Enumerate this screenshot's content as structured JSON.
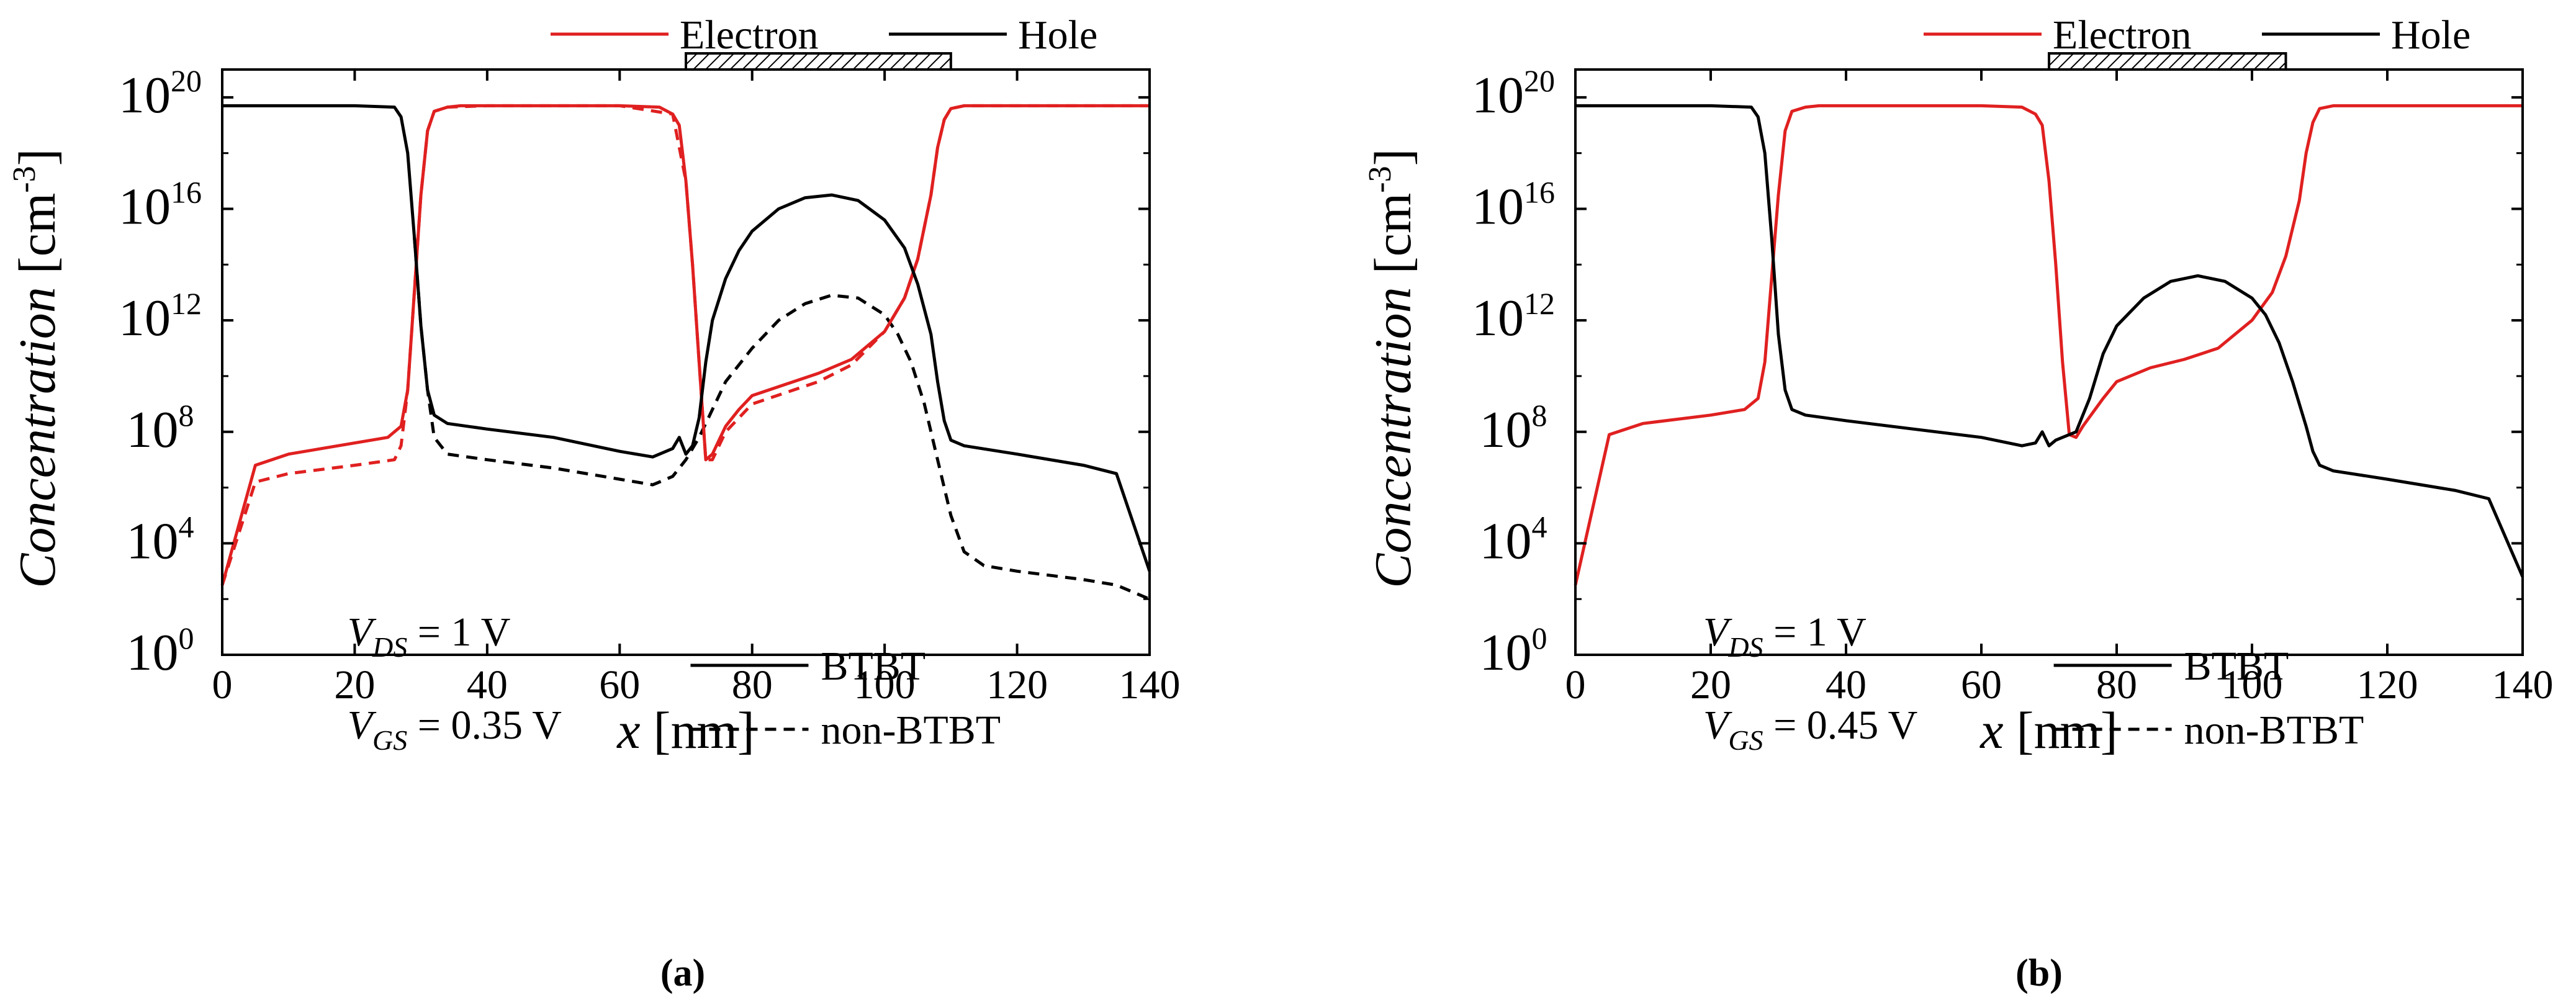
{
  "figure": {
    "panels_caption": [
      "(a)",
      "(b)"
    ]
  },
  "chart_data": [
    {
      "type": "line",
      "panel_label": "(a)",
      "title": "",
      "xlabel": "x [nm]",
      "ylabel": "Concentration [cm-3]",
      "ylabel_parts": {
        "italic": "Concentration",
        "unit_open": " [cm",
        "unit_sup": "-3",
        "unit_close": "]"
      },
      "xlabel_parts": {
        "italic": "x",
        "rest": " [nm]"
      },
      "x_scale": "linear",
      "y_scale": "log",
      "xlim": [
        0,
        140
      ],
      "ylim_log10": [
        0,
        21
      ],
      "x_ticks": [
        0,
        20,
        40,
        60,
        80,
        100,
        120,
        140
      ],
      "x_tick_labels": [
        "0",
        "20",
        "40",
        "60",
        "80",
        "100",
        "120",
        "140"
      ],
      "y_ticks_log10": [
        0,
        4,
        8,
        12,
        16,
        20
      ],
      "y_tick_labels": [
        {
          "base": "10",
          "exp": "0"
        },
        {
          "base": "10",
          "exp": "4"
        },
        {
          "base": "10",
          "exp": "8"
        },
        {
          "base": "10",
          "exp": "12"
        },
        {
          "base": "10",
          "exp": "16"
        },
        {
          "base": "10",
          "exp": "20"
        }
      ],
      "gate_region_nm": [
        70,
        110
      ],
      "legend_top": [
        {
          "label": "Electron",
          "color": "#e02020"
        },
        {
          "label": "Hole",
          "color": "#000000"
        }
      ],
      "legend_style": [
        {
          "label": "BTBT",
          "dash": "solid"
        },
        {
          "label": "non-BTBT",
          "dash": "dashed"
        }
      ],
      "annotations": [
        {
          "main": "V",
          "sub": "DS",
          "rest": " = 1 V"
        },
        {
          "main": "V",
          "sub": "GS",
          "rest": " = 0.35 V"
        }
      ],
      "series": [
        {
          "name": "Electron (BTBT)",
          "color": "#e02020",
          "dash": "solid",
          "x": [
            0,
            5,
            10,
            20,
            25,
            27,
            28,
            29,
            30,
            31,
            32,
            34,
            36,
            40,
            50,
            60,
            66,
            68,
            69,
            70,
            71,
            72,
            73,
            74,
            76,
            78,
            80,
            85,
            90,
            95,
            100,
            103,
            105,
            107,
            108,
            109,
            110,
            112,
            115,
            120,
            130,
            140
          ],
          "y_log10": [
            2.5,
            6.8,
            7.2,
            7.6,
            7.8,
            8.2,
            9.5,
            13,
            16.5,
            18.8,
            19.5,
            19.65,
            19.7,
            19.7,
            19.7,
            19.7,
            19.65,
            19.4,
            19.0,
            17,
            14,
            10.5,
            7.0,
            7.2,
            8.2,
            8.8,
            9.3,
            9.7,
            10.1,
            10.6,
            11.6,
            12.8,
            14.2,
            16.5,
            18.2,
            19.2,
            19.6,
            19.7,
            19.7,
            19.7,
            19.7,
            19.7
          ]
        },
        {
          "name": "Hole (BTBT)",
          "color": "#000000",
          "dash": "solid",
          "x": [
            0,
            10,
            20,
            26,
            27,
            28,
            29,
            30,
            31,
            32,
            34,
            40,
            50,
            60,
            65,
            68,
            69,
            70,
            71,
            72,
            73,
            74,
            76,
            78,
            80,
            84,
            88,
            92,
            96,
            100,
            103,
            105,
            107,
            108,
            109,
            110,
            112,
            120,
            130,
            135,
            140
          ],
          "y_log10": [
            19.7,
            19.7,
            19.7,
            19.65,
            19.3,
            18,
            15,
            11.8,
            9.5,
            8.6,
            8.3,
            8.1,
            7.8,
            7.3,
            7.1,
            7.4,
            7.8,
            7.2,
            7.5,
            8.5,
            10.5,
            12.0,
            13.5,
            14.5,
            15.2,
            16.0,
            16.4,
            16.5,
            16.3,
            15.6,
            14.6,
            13.3,
            11.5,
            9.8,
            8.4,
            7.7,
            7.5,
            7.2,
            6.8,
            6.5,
            3.0
          ]
        },
        {
          "name": "Electron (non-BTBT)",
          "color": "#e02020",
          "dash": "dashed",
          "x": [
            0,
            5,
            10,
            20,
            26,
            27,
            28,
            29,
            30,
            31,
            32,
            34,
            40,
            60,
            68,
            70,
            71,
            72,
            73,
            74,
            76,
            78,
            80,
            85,
            90,
            95,
            100,
            103,
            105,
            107,
            108,
            109,
            110,
            112,
            120,
            140
          ],
          "y_log10": [
            2.5,
            6.2,
            6.5,
            6.8,
            7.0,
            7.5,
            9.5,
            13,
            16.5,
            18.8,
            19.5,
            19.65,
            19.7,
            19.7,
            19.4,
            17,
            14,
            10.5,
            7.0,
            7.0,
            8.0,
            8.5,
            9.0,
            9.4,
            9.8,
            10.4,
            11.6,
            12.8,
            14.2,
            16.5,
            18.2,
            19.2,
            19.6,
            19.7,
            19.7,
            19.7
          ]
        },
        {
          "name": "Hole (non-BTBT)",
          "color": "#000000",
          "dash": "dashed",
          "x": [
            29,
            30,
            31,
            32,
            34,
            40,
            50,
            60,
            65,
            68,
            70,
            72,
            74,
            76,
            80,
            84,
            88,
            92,
            96,
            100,
            102,
            104,
            106,
            108,
            110,
            112,
            115,
            120,
            130,
            135,
            140
          ],
          "y_log10": [
            15,
            11.8,
            9.5,
            7.8,
            7.2,
            7.0,
            6.7,
            6.3,
            6.1,
            6.4,
            7.0,
            7.8,
            8.8,
            9.8,
            11.0,
            12.0,
            12.6,
            12.9,
            12.8,
            12.2,
            11.5,
            10.5,
            9.0,
            7.0,
            5.0,
            3.7,
            3.2,
            3.0,
            2.7,
            2.5,
            2.0
          ]
        }
      ]
    },
    {
      "type": "line",
      "panel_label": "(b)",
      "title": "",
      "xlabel": "x [nm]",
      "ylabel": "Concentration [cm-3]",
      "ylabel_parts": {
        "italic": "Concentration",
        "unit_open": " [cm",
        "unit_sup": "-3",
        "unit_close": "]"
      },
      "xlabel_parts": {
        "italic": "x",
        "rest": " [nm]"
      },
      "x_scale": "linear",
      "y_scale": "log",
      "xlim": [
        0,
        140
      ],
      "ylim_log10": [
        0,
        21
      ],
      "x_ticks": [
        0,
        20,
        40,
        60,
        80,
        100,
        120,
        140
      ],
      "x_tick_labels": [
        "0",
        "20",
        "40",
        "60",
        "80",
        "100",
        "120",
        "140"
      ],
      "y_ticks_log10": [
        0,
        4,
        8,
        12,
        16,
        20
      ],
      "y_tick_labels": [
        {
          "base": "10",
          "exp": "0"
        },
        {
          "base": "10",
          "exp": "4"
        },
        {
          "base": "10",
          "exp": "8"
        },
        {
          "base": "10",
          "exp": "12"
        },
        {
          "base": "10",
          "exp": "16"
        },
        {
          "base": "10",
          "exp": "20"
        }
      ],
      "gate_region_nm": [
        70,
        105
      ],
      "legend_top": [
        {
          "label": "Electron",
          "color": "#e02020"
        },
        {
          "label": "Hole",
          "color": "#000000"
        }
      ],
      "legend_style": [
        {
          "label": "BTBT",
          "dash": "solid"
        },
        {
          "label": "non-BTBT",
          "dash": "dashed"
        }
      ],
      "annotations": [
        {
          "main": "V",
          "sub": "DS",
          "rest": " = 1 V"
        },
        {
          "main": "V",
          "sub": "GS",
          "rest": " = 0.45 V"
        }
      ],
      "series": [
        {
          "name": "Electron",
          "color": "#e02020",
          "dash": "solid",
          "x": [
            0,
            5,
            10,
            20,
            25,
            27,
            28,
            29,
            30,
            31,
            32,
            34,
            36,
            40,
            50,
            60,
            66,
            68,
            69,
            70,
            71,
            72,
            73,
            74,
            75,
            78,
            80,
            85,
            90,
            95,
            100,
            103,
            105,
            107,
            108,
            109,
            110,
            112,
            115,
            120,
            140
          ],
          "y_log10": [
            2.5,
            7.9,
            8.3,
            8.6,
            8.8,
            9.2,
            10.5,
            13.5,
            16.5,
            18.8,
            19.5,
            19.65,
            19.7,
            19.7,
            19.7,
            19.7,
            19.65,
            19.4,
            19.0,
            17,
            14,
            10.5,
            7.9,
            7.8,
            8.2,
            9.2,
            9.8,
            10.3,
            10.6,
            11.0,
            12.0,
            13.0,
            14.3,
            16.3,
            18.0,
            19.1,
            19.6,
            19.7,
            19.7,
            19.7,
            19.7
          ]
        },
        {
          "name": "Hole",
          "color": "#000000",
          "dash": "solid",
          "x": [
            0,
            10,
            20,
            26,
            27,
            28,
            29,
            30,
            31,
            32,
            34,
            40,
            50,
            60,
            66,
            68,
            69,
            70,
            71,
            72,
            74,
            76,
            78,
            80,
            84,
            88,
            92,
            96,
            100,
            102,
            104,
            106,
            108,
            109,
            110,
            111,
            112,
            120,
            130,
            135,
            140
          ],
          "y_log10": [
            19.7,
            19.7,
            19.7,
            19.65,
            19.3,
            18,
            15,
            11.5,
            9.5,
            8.8,
            8.6,
            8.4,
            8.1,
            7.8,
            7.5,
            7.6,
            8.0,
            7.5,
            7.7,
            7.8,
            8.0,
            9.2,
            10.8,
            11.8,
            12.8,
            13.4,
            13.6,
            13.4,
            12.8,
            12.2,
            11.2,
            9.8,
            8.2,
            7.3,
            6.8,
            6.7,
            6.6,
            6.3,
            5.9,
            5.6,
            2.8
          ]
        }
      ]
    }
  ]
}
